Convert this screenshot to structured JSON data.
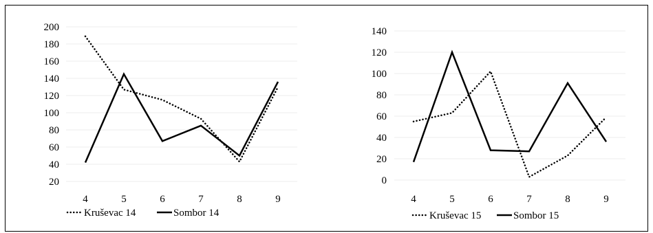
{
  "chart_data": [
    {
      "type": "line",
      "title": "",
      "xlabel": "",
      "ylabel": "",
      "categories": [
        "4",
        "5",
        "6",
        "7",
        "8",
        "9"
      ],
      "ylim": [
        20,
        200
      ],
      "yticks": [
        "20",
        "40",
        "60",
        "80",
        "100",
        "120",
        "140",
        "160",
        "180",
        "200"
      ],
      "grid": true,
      "legend": "bottom",
      "series": [
        {
          "name": "Kruševac 14",
          "style": "dotted",
          "color": "#000000",
          "values": [
            189,
            127,
            115,
            93,
            43,
            130
          ]
        },
        {
          "name": "Sombor 14",
          "style": "solid",
          "color": "#000000",
          "values": [
            42,
            145,
            67,
            85,
            50,
            136
          ]
        }
      ]
    },
    {
      "type": "line",
      "title": "",
      "xlabel": "",
      "ylabel": "",
      "categories": [
        "4",
        "5",
        "6",
        "7",
        "8",
        "9"
      ],
      "ylim": [
        0,
        140
      ],
      "yticks": [
        "0",
        "20",
        "40",
        "60",
        "80",
        "100",
        "120",
        "140"
      ],
      "grid": true,
      "legend": "bottom",
      "series": [
        {
          "name": "Kruševac 15",
          "style": "dotted",
          "color": "#000000",
          "values": [
            55,
            63,
            102,
            3,
            23,
            59
          ]
        },
        {
          "name": "Sombor 15",
          "style": "solid",
          "color": "#000000",
          "values": [
            17,
            120,
            28,
            27,
            91,
            36
          ]
        }
      ]
    }
  ]
}
